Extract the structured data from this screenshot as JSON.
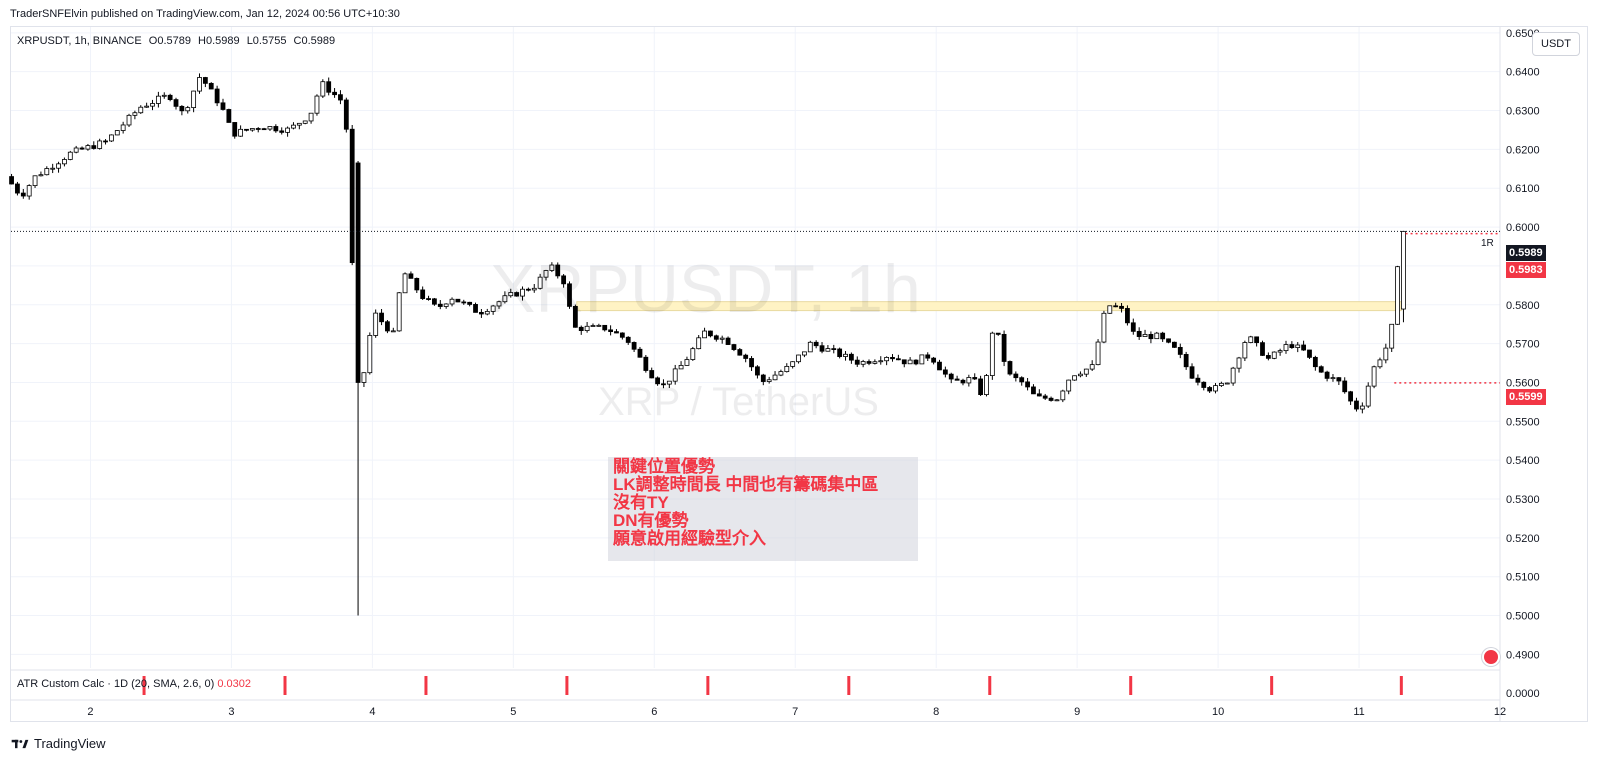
{
  "published": "TraderSNFElvin published on TradingView.com, Jan 12, 2024 00:56 UTC+10:30",
  "header": {
    "symbol": "XRPUSDT, 1h, BINANCE",
    "open": "O0.5789",
    "high": "H0.5989",
    "low": "L0.5755",
    "close": "C0.5989"
  },
  "currency": "USDT",
  "watermark": {
    "line1": "XRPUSDT, 1h",
    "line2": "XRP / TetherUS"
  },
  "note_lines": [
    "關鍵位置優勢",
    "LK調整時間長 中間也有籌碼集中區",
    "沒有TY",
    "DN有優勢",
    "願意啟用經驗型介入"
  ],
  "atr": {
    "label": "ATR Custom Calc · 1D (20, SMA, 2.6, 0)",
    "value": "0.0302"
  },
  "brand": "TradingView",
  "last_price_label": "0.5989",
  "target_label": "0.5983",
  "stop_label": "0.5599",
  "r_label": "1R",
  "colors": {
    "up": "#ffffff",
    "down": "#000000",
    "outline": "#000000",
    "accent": "#f23645",
    "zone": "#fff3c4"
  },
  "chart_data": {
    "type": "candlestick",
    "symbol": "XRPUSDT",
    "interval": "1h",
    "ylim": [
      0.4865,
      0.6515
    ],
    "yticks": [
      "0.6500",
      "0.6400",
      "0.6300",
      "0.6200",
      "0.6100",
      "0.6000",
      "0.5900",
      "0.5800",
      "0.5700",
      "0.5600",
      "0.5500",
      "0.5400",
      "0.5300",
      "0.5200",
      "0.5100",
      "0.5000",
      "0.4900"
    ],
    "xticks": [
      "2",
      "3",
      "4",
      "5",
      "6",
      "7",
      "8",
      "9",
      "10",
      "11",
      "12"
    ],
    "xlim_days": [
      1.436,
      12.0
    ],
    "support_zone": {
      "x_start_day": 5.45,
      "x_end_day": 11.3,
      "low": 0.5785,
      "high": 0.5808
    },
    "levels": {
      "last": 0.5989,
      "target": 0.5983,
      "stop": 0.5599
    },
    "anchors": [
      [
        1.44,
        0.613
      ],
      [
        1.55,
        0.608
      ],
      [
        1.65,
        0.613
      ],
      [
        1.9,
        0.619
      ],
      [
        2.15,
        0.622
      ],
      [
        2.4,
        0.631
      ],
      [
        2.6,
        0.634
      ],
      [
        2.7,
        0.629
      ],
      [
        2.82,
        0.639
      ],
      [
        2.97,
        0.631
      ],
      [
        3.05,
        0.624
      ],
      [
        3.25,
        0.626
      ],
      [
        3.45,
        0.625
      ],
      [
        3.6,
        0.629
      ],
      [
        3.68,
        0.637
      ],
      [
        3.84,
        0.632
      ],
      [
        3.88,
        0.616
      ],
      [
        3.92,
        0.56
      ],
      [
        3.97,
        0.56
      ],
      [
        4.05,
        0.578
      ],
      [
        4.2,
        0.572
      ],
      [
        4.25,
        0.589
      ],
      [
        4.4,
        0.582
      ],
      [
        4.5,
        0.579
      ],
      [
        4.6,
        0.582
      ],
      [
        4.8,
        0.578
      ],
      [
        5.0,
        0.582
      ],
      [
        5.2,
        0.585
      ],
      [
        5.3,
        0.59
      ],
      [
        5.4,
        0.586
      ],
      [
        5.47,
        0.574
      ],
      [
        5.7,
        0.574
      ],
      [
        5.85,
        0.571
      ],
      [
        6.0,
        0.563
      ],
      [
        6.1,
        0.559
      ],
      [
        6.25,
        0.565
      ],
      [
        6.4,
        0.573
      ],
      [
        6.55,
        0.571
      ],
      [
        6.7,
        0.566
      ],
      [
        6.8,
        0.56
      ],
      [
        7.0,
        0.564
      ],
      [
        7.15,
        0.57
      ],
      [
        7.3,
        0.568
      ],
      [
        7.5,
        0.565
      ],
      [
        7.7,
        0.567
      ],
      [
        7.85,
        0.565
      ],
      [
        8.0,
        0.567
      ],
      [
        8.15,
        0.56
      ],
      [
        8.3,
        0.561
      ],
      [
        8.38,
        0.556
      ],
      [
        8.45,
        0.576
      ],
      [
        8.55,
        0.562
      ],
      [
        8.65,
        0.56
      ],
      [
        8.75,
        0.556
      ],
      [
        8.9,
        0.556
      ],
      [
        9.0,
        0.562
      ],
      [
        9.15,
        0.564
      ],
      [
        9.25,
        0.58
      ],
      [
        9.35,
        0.579
      ],
      [
        9.45,
        0.572
      ],
      [
        9.6,
        0.572
      ],
      [
        9.75,
        0.568
      ],
      [
        9.85,
        0.562
      ],
      [
        10.0,
        0.558
      ],
      [
        10.1,
        0.56
      ],
      [
        10.25,
        0.572
      ],
      [
        10.4,
        0.566
      ],
      [
        10.55,
        0.57
      ],
      [
        10.65,
        0.568
      ],
      [
        10.75,
        0.563
      ],
      [
        10.9,
        0.56
      ],
      [
        11.0,
        0.554
      ],
      [
        11.05,
        0.553
      ],
      [
        11.15,
        0.564
      ],
      [
        11.25,
        0.57
      ],
      [
        11.3,
        0.579
      ],
      [
        11.33,
        0.5989
      ]
    ],
    "atr_ylim": [
      0.0,
      0.0302
    ],
    "atr_marker_days": [
      2.38,
      3.38,
      4.38,
      5.38,
      6.38,
      7.38,
      8.38,
      9.38,
      10.38,
      11.3
    ]
  }
}
